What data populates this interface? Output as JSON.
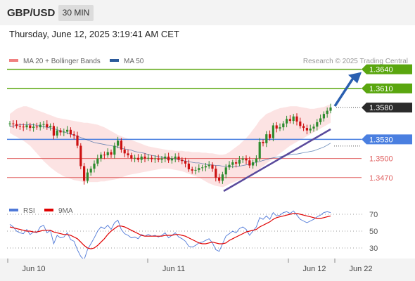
{
  "header": {
    "symbol": "GBP/USD",
    "timeframe": "30 MIN",
    "datetime": "Thursday, June 12, 2025 3:19:41 AM CET"
  },
  "legend": {
    "items": [
      {
        "label": "MA 20 + Bollinger Bands",
        "color": "#f08080"
      },
      {
        "label": "MA 50",
        "color": "#2b5a9b"
      }
    ],
    "credit": "Research © 2025 Trading Central"
  },
  "rsi_legend": {
    "items": [
      {
        "label": "RSI",
        "color": "#4f79d8"
      },
      {
        "label": "9MA",
        "color": "#e00000"
      }
    ]
  },
  "colors": {
    "up": "#2e8b2e",
    "down": "#cc1111",
    "resistance": "#5aa60f",
    "pivot": "#4a7fe0",
    "support": "#e06060",
    "current": "#2b2b2b",
    "arrow": "#2a5fb0",
    "trendline": "#5a4a9c",
    "bollinger": "#fbdede"
  },
  "chart_data": [
    {
      "type": "candlestick",
      "title": "GBP/USD",
      "y_range": [
        1.344,
        1.3665
      ],
      "levels": [
        {
          "value": 1.364,
          "label": "1.3640",
          "kind": "resistance"
        },
        {
          "value": 1.361,
          "label": "1.3610",
          "kind": "resistance"
        },
        {
          "value": 1.358,
          "label": "1.3580",
          "kind": "current"
        },
        {
          "value": 1.353,
          "label": "1.3530",
          "kind": "pivot"
        },
        {
          "value": 1.35,
          "label": "1.3500",
          "kind": "support"
        },
        {
          "value": 1.347,
          "label": "1.3470",
          "kind": "support"
        }
      ],
      "x_ticks": [
        "Jun 10",
        "Jun 11",
        "Jun 12",
        "Jun 22"
      ],
      "close": [
        1.3555,
        1.3554,
        1.3551,
        1.355,
        1.3549,
        1.3552,
        1.3548,
        1.355,
        1.3549,
        1.3553,
        1.3554,
        1.3549,
        1.3551,
        1.3536,
        1.3544,
        1.3541,
        1.3542,
        1.3545,
        1.3538,
        1.3536,
        1.352,
        1.3488,
        1.3465,
        1.3478,
        1.3484,
        1.3492,
        1.35,
        1.3506,
        1.3505,
        1.351,
        1.3506,
        1.352,
        1.3528,
        1.3514,
        1.3508,
        1.3505,
        1.35,
        1.3501,
        1.3498,
        1.3503,
        1.35,
        1.3501,
        1.3499,
        1.35,
        1.3498,
        1.35,
        1.3503,
        1.3497,
        1.35,
        1.3503,
        1.3498,
        1.3496,
        1.3492,
        1.3483,
        1.3481,
        1.3482,
        1.3485,
        1.3486,
        1.3488,
        1.349,
        1.3484,
        1.347,
        1.3465,
        1.3475,
        1.3486,
        1.349,
        1.3494,
        1.3492,
        1.3498,
        1.35,
        1.3497,
        1.3489,
        1.3494,
        1.35,
        1.3526,
        1.3524,
        1.3538,
        1.3532,
        1.3552,
        1.3547,
        1.3549,
        1.3555,
        1.3562,
        1.3559,
        1.3566,
        1.3558,
        1.3551,
        1.3548,
        1.3544,
        1.3547,
        1.355,
        1.3557,
        1.3563,
        1.357,
        1.3575,
        1.358
      ],
      "ma50": [
        1.355,
        1.3551,
        1.3552,
        1.3553,
        1.3553,
        1.3553,
        1.3553,
        1.3553,
        1.3552,
        1.3551,
        1.355,
        1.3549,
        1.3548,
        1.3547,
        1.3545,
        1.3544,
        1.3542,
        1.354,
        1.3538,
        1.3537,
        1.3535,
        1.3533,
        1.3531,
        1.3529,
        1.3527,
        1.3525,
        1.3524,
        1.3523,
        1.3522,
        1.3521,
        1.352,
        1.3519,
        1.3518,
        1.3516,
        1.3515,
        1.3514,
        1.3513,
        1.3511,
        1.351,
        1.3509,
        1.3508,
        1.3506,
        1.3505,
        1.3504,
        1.3503,
        1.3502,
        1.3501,
        1.35,
        1.35,
        1.3499,
        1.3498,
        1.3497,
        1.3496,
        1.3495,
        1.3494,
        1.3493,
        1.3493,
        1.3492,
        1.3491,
        1.349,
        1.349,
        1.3489,
        1.3489,
        1.3488,
        1.3488,
        1.3487,
        1.3487,
        1.3487,
        1.3488,
        1.3489,
        1.349,
        1.3491,
        1.3492,
        1.3494,
        1.3495,
        1.3497,
        1.3498,
        1.35,
        1.3501,
        1.3502,
        1.3503,
        1.3504,
        1.3505,
        1.3506,
        1.3507,
        1.3507,
        1.3508,
        1.3509,
        1.351,
        1.3511,
        1.3512,
        1.3514,
        1.3516,
        1.3518,
        1.3521,
        1.3524
      ],
      "bb_upper": [
        1.357,
        1.3574,
        1.3578,
        1.358,
        1.3582,
        1.3582,
        1.358,
        1.3578,
        1.3576,
        1.3574,
        1.3572,
        1.357,
        1.3568,
        1.3566,
        1.3564,
        1.3563,
        1.3562,
        1.3561,
        1.356,
        1.3559,
        1.3558,
        1.3557,
        1.3556,
        1.3556,
        1.3555,
        1.3554,
        1.3553,
        1.3551,
        1.3549,
        1.3546,
        1.3543,
        1.354,
        1.3537,
        1.3535,
        1.3533,
        1.3531,
        1.3529,
        1.3527,
        1.3525,
        1.3523,
        1.3521,
        1.3519,
        1.3518,
        1.3517,
        1.3516,
        1.3515,
        1.3514,
        1.3513,
        1.3513,
        1.3512,
        1.3512,
        1.3512,
        1.3511,
        1.3511,
        1.351,
        1.351,
        1.351,
        1.3509,
        1.3509,
        1.3508,
        1.3508,
        1.3507,
        1.3506,
        1.3506,
        1.3507,
        1.351,
        1.3514,
        1.3518,
        1.3522,
        1.3527,
        1.3532,
        1.3538,
        1.3545,
        1.3552,
        1.356,
        1.3565,
        1.357,
        1.3572,
        1.3575,
        1.3577,
        1.3579,
        1.358,
        1.3581,
        1.3582,
        1.3582,
        1.3582,
        1.3581,
        1.358,
        1.3579,
        1.3578,
        1.3578,
        1.3579,
        1.358,
        1.3581,
        1.3583,
        1.3585
      ],
      "bb_lower": [
        1.354,
        1.3537,
        1.3534,
        1.3531,
        1.3528,
        1.3524,
        1.352,
        1.3514,
        1.3508,
        1.3502,
        1.3496,
        1.3491,
        1.3486,
        1.3482,
        1.3478,
        1.3475,
        1.3472,
        1.347,
        1.3468,
        1.3466,
        1.3465,
        1.3464,
        1.3463,
        1.3463,
        1.3463,
        1.3463,
        1.3463,
        1.3464,
        1.3464,
        1.3465,
        1.3466,
        1.3467,
        1.3468,
        1.347,
        1.3472,
        1.3474,
        1.3475,
        1.3476,
        1.3477,
        1.3478,
        1.3479,
        1.348,
        1.3481,
        1.3482,
        1.3483,
        1.3484,
        1.3484,
        1.3484,
        1.3483,
        1.3482,
        1.3481,
        1.348,
        1.3478,
        1.3476,
        1.3474,
        1.3472,
        1.347,
        1.3467,
        1.3464,
        1.3461,
        1.3459,
        1.3457,
        1.3456,
        1.3455,
        1.3457,
        1.346,
        1.3462,
        1.3464,
        1.3466,
        1.3468,
        1.347,
        1.3473,
        1.3476,
        1.348,
        1.3484,
        1.3488,
        1.3492,
        1.3496,
        1.35,
        1.3504,
        1.3508,
        1.3512,
        1.3516,
        1.352,
        1.3523,
        1.3526,
        1.3529,
        1.3532,
        1.3535,
        1.3538,
        1.3541,
        1.3544,
        1.3547,
        1.355,
        1.3553,
        1.3556
      ]
    },
    {
      "type": "line",
      "title": "RSI",
      "y_ticks": [
        70,
        50,
        30
      ],
      "y_range": [
        20,
        80
      ],
      "series": [
        {
          "name": "RSI",
          "values": [
            58,
            55,
            50,
            48,
            47,
            52,
            46,
            49,
            48,
            55,
            57,
            48,
            51,
            35,
            45,
            42,
            43,
            48,
            40,
            38,
            28,
            20,
            16,
            28,
            35,
            42,
            50,
            55,
            53,
            57,
            52,
            60,
            63,
            52,
            47,
            45,
            42,
            43,
            41,
            46,
            44,
            46,
            44,
            45,
            43,
            45,
            48,
            42,
            45,
            48,
            43,
            41,
            38,
            32,
            31,
            33,
            36,
            37,
            39,
            41,
            36,
            28,
            26,
            35,
            44,
            47,
            50,
            48,
            53,
            55,
            52,
            45,
            50,
            55,
            66,
            64,
            68,
            64,
            72,
            68,
            69,
            72,
            73,
            71,
            74,
            69,
            64,
            62,
            60,
            62,
            64,
            67,
            69,
            72,
            73,
            72
          ]
        },
        {
          "name": "9MA",
          "values": [
            55,
            54,
            53,
            52,
            51,
            50,
            50,
            49,
            49,
            50,
            51,
            51,
            51,
            49,
            48,
            47,
            46,
            46,
            45,
            43,
            41,
            37,
            33,
            30,
            29,
            30,
            33,
            37,
            41,
            46,
            50,
            53,
            56,
            56,
            55,
            53,
            51,
            49,
            47,
            45,
            44,
            44,
            44,
            44,
            44,
            44,
            45,
            45,
            45,
            46,
            46,
            45,
            44,
            42,
            40,
            38,
            36,
            35,
            35,
            36,
            37,
            36,
            35,
            35,
            36,
            39,
            41,
            43,
            45,
            47,
            49,
            50,
            51,
            52,
            55,
            57,
            59,
            61,
            64,
            66,
            67,
            68,
            69,
            70,
            71,
            71,
            70,
            69,
            68,
            67,
            66,
            65,
            65,
            66,
            67,
            68
          ]
        }
      ]
    }
  ]
}
